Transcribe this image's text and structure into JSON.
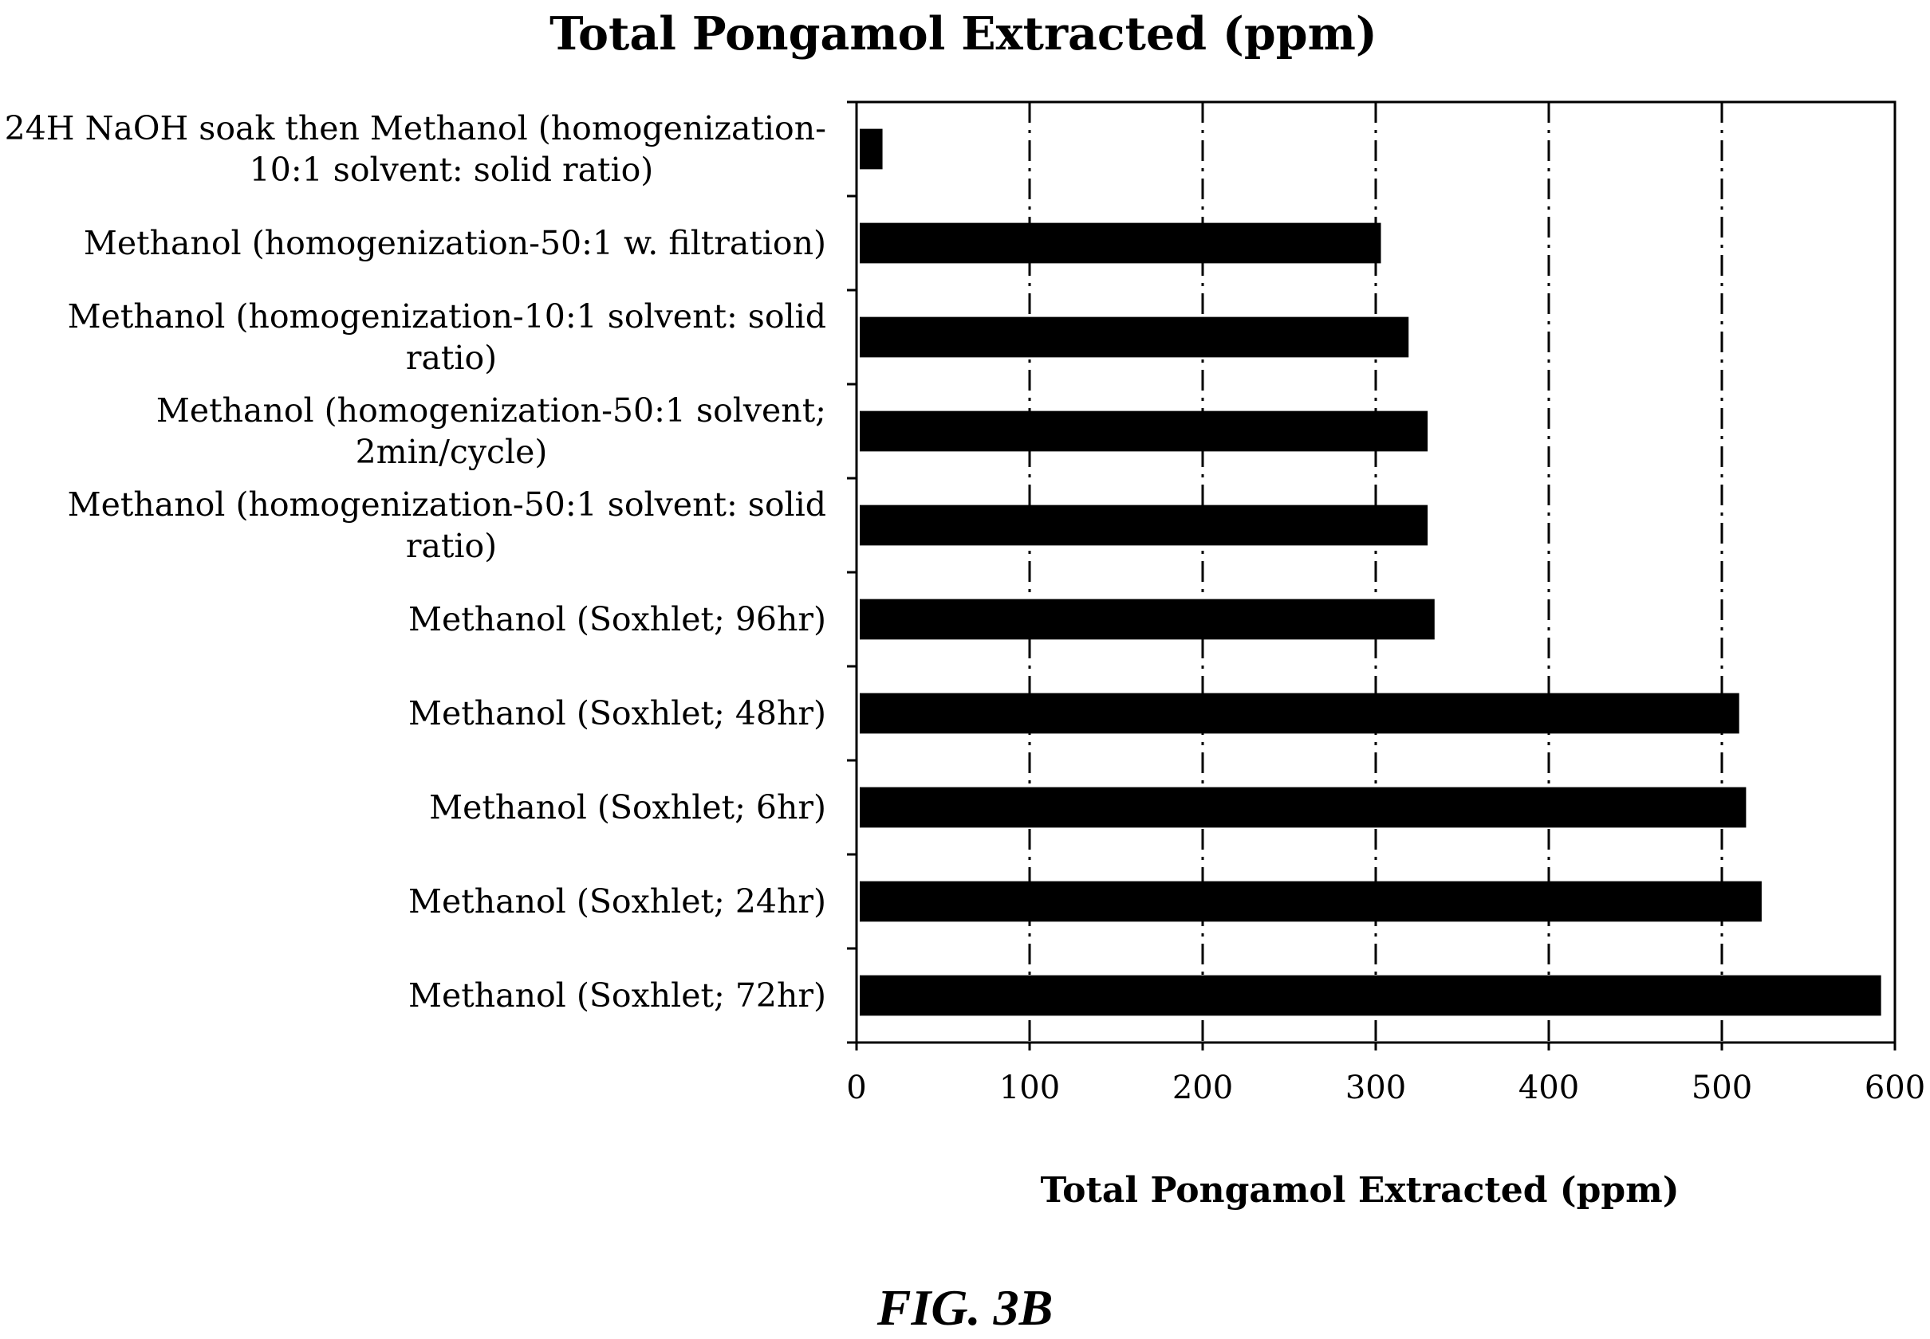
{
  "chart_data": {
    "type": "bar",
    "orientation": "horizontal",
    "title": "Total Pongamol Extracted (ppm)",
    "xlabel": "Total Pongamol Extracted (ppm)",
    "ylabel": "",
    "xlim": [
      0,
      600
    ],
    "x_ticks": [
      "0",
      "100",
      "200",
      "300",
      "400",
      "500",
      "600"
    ],
    "grid": "vertical dash-dot gridlines at major ticks",
    "legend": "none",
    "bar_color": "#000000",
    "categories": [
      [
        "24H NaOH soak then Methanol (homogenization-",
        "10:1 solvent: solid ratio)"
      ],
      [
        "Methanol (homogenization-50:1 w. filtration)"
      ],
      [
        "Methanol (homogenization-10:1 solvent: solid",
        "ratio)"
      ],
      [
        "Methanol (homogenization-50:1 solvent;",
        "2min/cycle)"
      ],
      [
        "Methanol (homogenization-50:1 solvent: solid",
        "ratio)"
      ],
      [
        "Methanol (Soxhlet; 96hr)"
      ],
      [
        "Methanol (Soxhlet; 48hr)"
      ],
      [
        "Methanol (Soxhlet; 6hr)"
      ],
      [
        "Methanol (Soxhlet; 24hr)"
      ],
      [
        "Methanol (Soxhlet; 72hr)"
      ]
    ],
    "values": [
      15,
      303,
      319,
      330,
      330,
      334,
      510,
      514,
      523,
      592
    ]
  },
  "caption": "FIG. 3B"
}
